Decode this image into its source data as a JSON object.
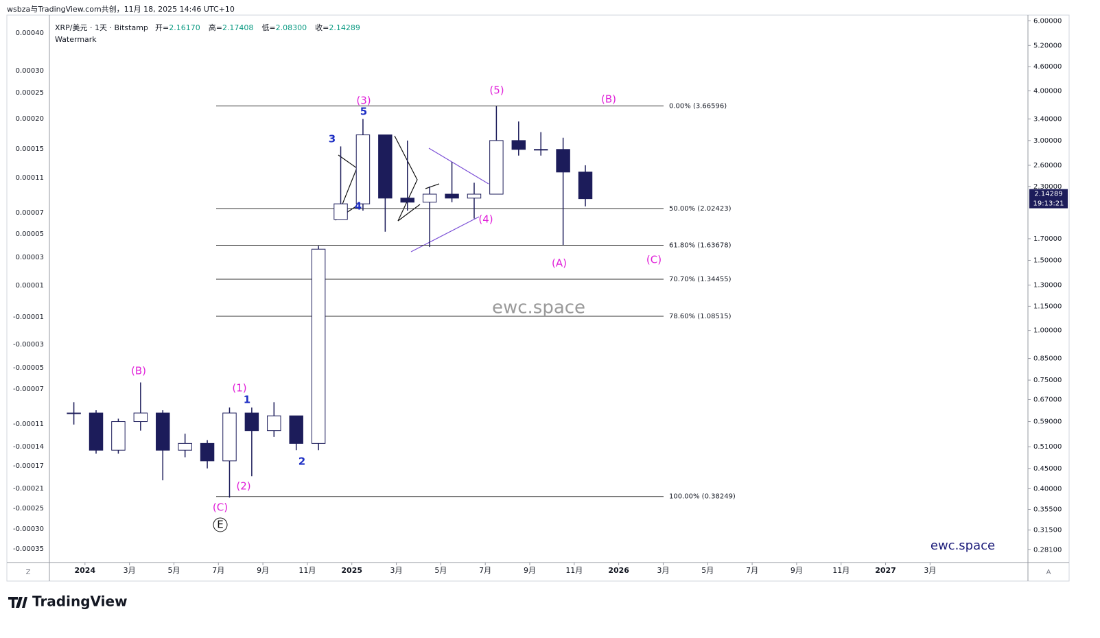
{
  "header": {
    "credit": "wsbza与TradingView.com共创，11月 18, 2025 14:46 UTC+10",
    "brand": "TradingView"
  },
  "legend": {
    "symbol": "XRP/美元 · 1天 · Bitstamp",
    "items": [
      {
        "key": "开=",
        "value": "2.16170"
      },
      {
        "key": "高=",
        "value": "2.17408"
      },
      {
        "key": "低=",
        "value": "2.08300"
      },
      {
        "key": "收=",
        "value": "2.14289"
      }
    ],
    "study": "Watermark"
  },
  "buttons": {
    "left": "Z",
    "right": "A"
  },
  "left_axis": {
    "labels": [
      "0.00040",
      "0.00030",
      "0.00025",
      "0.00020",
      "0.00015",
      "0.00011",
      "0.00007",
      "0.00005",
      "0.00003",
      "0.00001",
      "-0.00001",
      "-0.00003",
      "-0.00005",
      "-0.00007",
      "-0.00011",
      "-0.00014",
      "-0.00017",
      "-0.00021",
      "-0.00025",
      "-0.00030",
      "-0.00035"
    ]
  },
  "annotations": [
    {
      "text": "(B)",
      "color": "#e01fd8"
    },
    {
      "text": "(1)",
      "color": "#e01fd8"
    },
    {
      "text": "1",
      "color": "#1e2fc4"
    },
    {
      "text": "(2)",
      "color": "#e01fd8"
    },
    {
      "text": "2",
      "color": "#1e2fc4"
    },
    {
      "text": "(C)",
      "color": "#e01fd8"
    },
    {
      "text": "E",
      "color": "#111111"
    },
    {
      "text": "3",
      "color": "#1e2fc4"
    },
    {
      "text": "4",
      "color": "#1e2fc4"
    },
    {
      "text": "(3)",
      "color": "#e01fd8"
    },
    {
      "text": "5",
      "color": "#1e2fc4"
    },
    {
      "text": "(5)",
      "color": "#e01fd8"
    },
    {
      "text": "(B)",
      "color": "#e01fd8"
    },
    {
      "text": "(4)",
      "color": "#e01fd8"
    },
    {
      "text": "(A)",
      "color": "#e01fd8"
    },
    {
      "text": "(C)",
      "color": "#e01fd8"
    }
  ],
  "watermarks": [
    "ewc.space",
    "ewc.space"
  ],
  "chart_data": {
    "type": "ohlc",
    "color": "#1c1c5a",
    "log_scale": true,
    "x": [
      "2023-12",
      "2024-01",
      "2024-02",
      "2024-03",
      "2024-04",
      "2024-05",
      "2024-06",
      "2024-07",
      "2024-08",
      "2024-09",
      "2024-10",
      "2024-11",
      "2024-12",
      "2025-01",
      "2025-02",
      "2025-03",
      "2025-04",
      "2025-05",
      "2025-06",
      "2025-07",
      "2025-08",
      "2025-09",
      "2025-10",
      "2025-11"
    ],
    "open": [
      0.62,
      0.62,
      0.5,
      0.59,
      0.62,
      0.5,
      0.52,
      0.47,
      0.62,
      0.56,
      0.61,
      0.52,
      1.9,
      2.08,
      3.1,
      2.15,
      2.1,
      2.2,
      2.15,
      2.2,
      3.0,
      2.85,
      2.85,
      2.5
    ],
    "high": [
      0.66,
      0.63,
      0.6,
      0.74,
      0.63,
      0.55,
      0.53,
      0.64,
      0.64,
      0.66,
      0.61,
      1.63,
      2.9,
      3.4,
      3.1,
      3.0,
      2.3,
      2.65,
      2.35,
      3.66,
      3.35,
      3.15,
      3.05,
      2.6
    ],
    "low": [
      0.58,
      0.49,
      0.49,
      0.56,
      0.42,
      0.48,
      0.45,
      0.38,
      0.43,
      0.54,
      0.5,
      0.5,
      1.9,
      2.0,
      1.77,
      2.0,
      1.62,
      2.1,
      1.91,
      2.2,
      2.75,
      2.75,
      1.64,
      2.05
    ],
    "close": [
      0.62,
      0.5,
      0.59,
      0.62,
      0.5,
      0.52,
      0.47,
      0.62,
      0.56,
      0.61,
      0.52,
      1.6,
      2.08,
      3.1,
      2.15,
      2.1,
      2.2,
      2.15,
      2.2,
      3.0,
      2.85,
      2.85,
      2.5,
      2.14289
    ],
    "xlim": [
      "2023-11",
      "2027-07"
    ],
    "xticks": [
      {
        "value": "2024-01",
        "label": "2024"
      },
      {
        "value": "2024-03",
        "label": "3月"
      },
      {
        "value": "2024-05",
        "label": "5月"
      },
      {
        "value": "2024-07",
        "label": "7月"
      },
      {
        "value": "2024-09",
        "label": "9月"
      },
      {
        "value": "2024-11",
        "label": "11月"
      },
      {
        "value": "2025-01",
        "label": "2025"
      },
      {
        "value": "2025-03",
        "label": "3月"
      },
      {
        "value": "2025-05",
        "label": "5月"
      },
      {
        "value": "2025-07",
        "label": "7月"
      },
      {
        "value": "2025-09",
        "label": "9月"
      },
      {
        "value": "2025-11",
        "label": "11月"
      },
      {
        "value": "2026-01",
        "label": "2026"
      },
      {
        "value": "2026-03",
        "label": "3月"
      },
      {
        "value": "2026-05",
        "label": "5月"
      },
      {
        "value": "2026-07",
        "label": "7月"
      },
      {
        "value": "2026-09",
        "label": "9月"
      },
      {
        "value": "2026-11",
        "label": "11月"
      },
      {
        "value": "2027-01",
        "label": "2027"
      },
      {
        "value": "2027-03",
        "label": "3月"
      }
    ],
    "ylim": [
      0.261,
      6.2
    ],
    "yticks": [
      {
        "value": 6,
        "label": "6.00000"
      },
      {
        "value": 5.2,
        "label": "5.20000"
      },
      {
        "value": 4.6,
        "label": "4.60000"
      },
      {
        "value": 4,
        "label": "4.00000"
      },
      {
        "value": 3.4,
        "label": "3.40000"
      },
      {
        "value": 3,
        "label": "3.00000"
      },
      {
        "value": 2.6,
        "label": "2.60000"
      },
      {
        "value": 2.3,
        "label": "2.30000"
      },
      {
        "value": 1.7,
        "label": "1.70000"
      },
      {
        "value": 1.5,
        "label": "1.50000"
      },
      {
        "value": 1.3,
        "label": "1.30000"
      },
      {
        "value": 1.15,
        "label": "1.15000"
      },
      {
        "value": 1,
        "label": "1.00000"
      },
      {
        "value": 0.85,
        "label": "0.85000"
      },
      {
        "value": 0.75,
        "label": "0.75000"
      },
      {
        "value": 0.67,
        "label": "0.67000"
      },
      {
        "value": 0.59,
        "label": "0.59000"
      },
      {
        "value": 0.51,
        "label": "0.51000"
      },
      {
        "value": 0.45,
        "label": "0.45000"
      },
      {
        "value": 0.4,
        "label": "0.40000"
      },
      {
        "value": 0.355,
        "label": "0.35500"
      },
      {
        "value": 0.315,
        "label": "0.31500"
      },
      {
        "value": 0.281,
        "label": "0.28100"
      }
    ],
    "fib_levels": [
      {
        "label": "0.00% (3.66596)",
        "value": 3.66596
      },
      {
        "label": "50.00% (2.02423)",
        "value": 2.02423
      },
      {
        "label": "61.80% (1.63678)",
        "value": 1.63678
      },
      {
        "label": "70.70% (1.34455)",
        "value": 1.34455
      },
      {
        "label": "78.60% (1.08515)",
        "value": 1.08515
      },
      {
        "label": "100.00% (0.38249)",
        "value": 0.38249
      }
    ],
    "last_price": 2.14289,
    "countdown": "19:13:21"
  }
}
